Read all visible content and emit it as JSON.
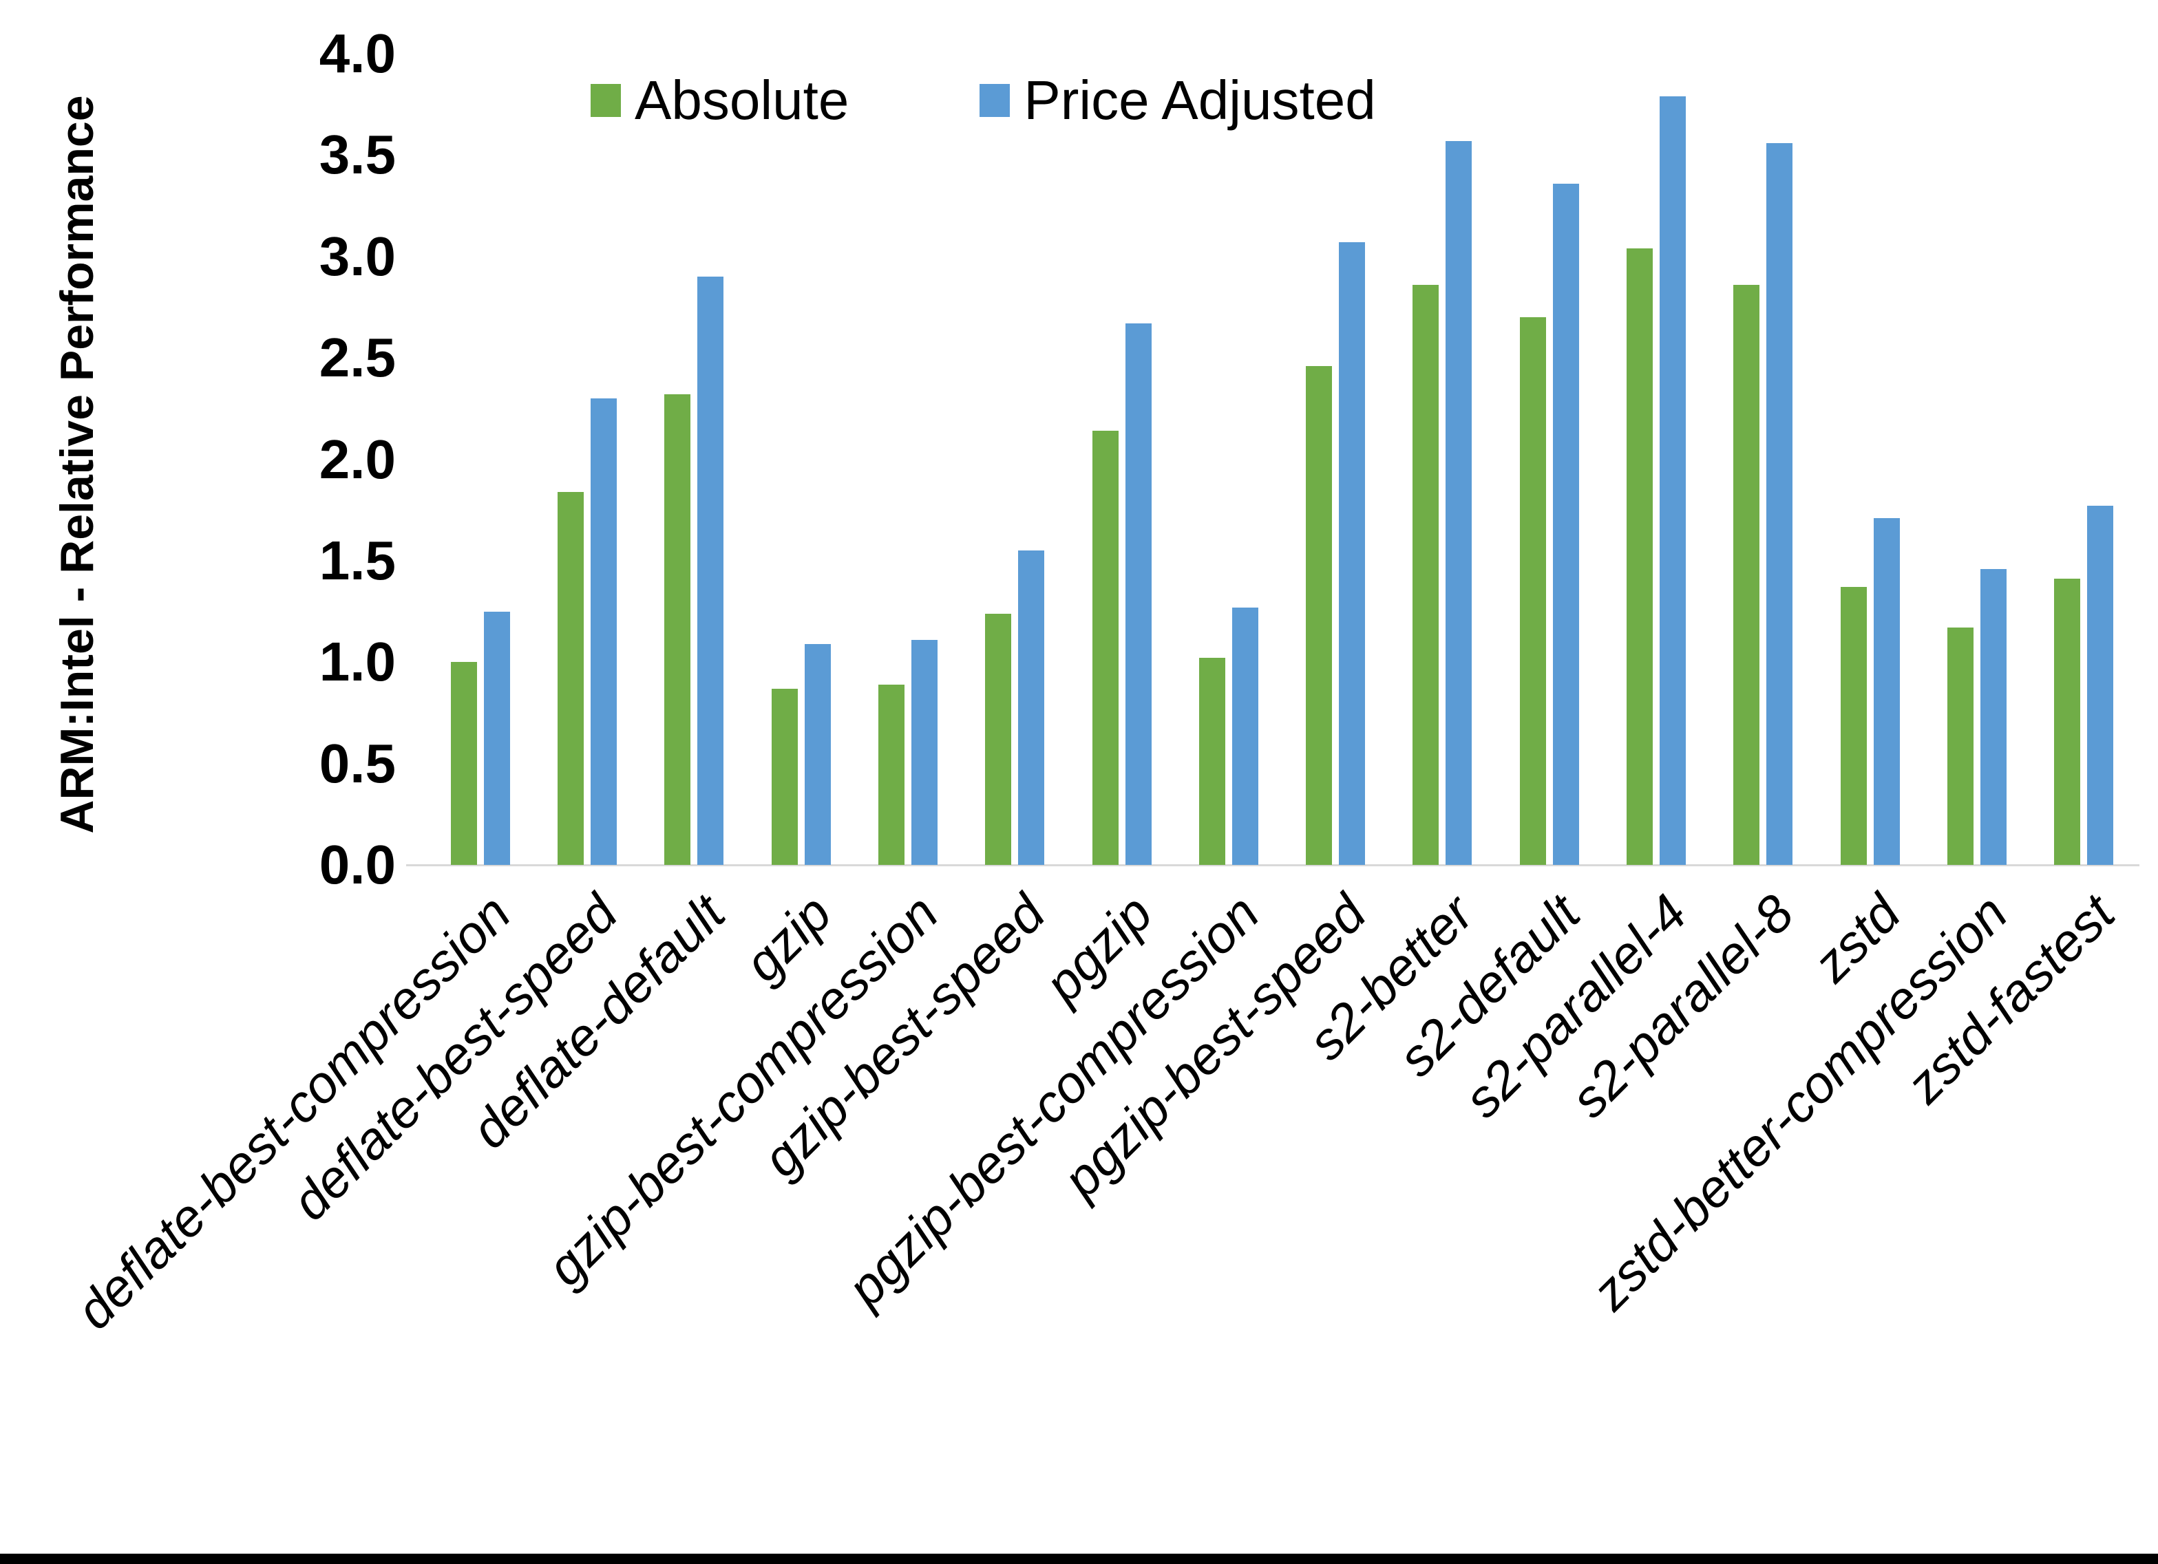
{
  "chart_data": {
    "type": "bar",
    "title": "",
    "xlabel": "",
    "ylabel": "ARM:Intel - Relative Performance",
    "ylim": [
      0,
      4.0
    ],
    "ytick_step": 0.5,
    "ytick_decimals": 1,
    "grid": false,
    "legend_position": "top",
    "categories": [
      "deflate-best-compression",
      "deflate-best-speed",
      "deflate-default",
      "gzip",
      "gzip-best-compression",
      "gzip-best-speed",
      "pgzip",
      "pgzip-best-compression",
      "pgzip-best-speed",
      "s2-better",
      "s2-default",
      "s2-parallel-4",
      "s2-parallel-8",
      "zstd",
      "zstd-better-compression",
      "zstd-fastest"
    ],
    "series": [
      {
        "name": "Absolute",
        "color": "#70AD47",
        "values": [
          1.0,
          1.84,
          2.32,
          0.87,
          0.89,
          1.24,
          2.14,
          1.02,
          2.46,
          2.86,
          2.7,
          3.04,
          2.86,
          1.37,
          1.17,
          1.41
        ]
      },
      {
        "name": "Price Adjusted",
        "color": "#5B9BD5",
        "values": [
          1.25,
          2.3,
          2.9,
          1.09,
          1.11,
          1.55,
          2.67,
          1.27,
          3.07,
          3.57,
          3.36,
          3.79,
          3.56,
          1.71,
          1.46,
          1.77
        ]
      }
    ]
  },
  "colors": {
    "axis_line": "#d9d9d9",
    "bottom_border": "#000000",
    "text": "#000000"
  }
}
